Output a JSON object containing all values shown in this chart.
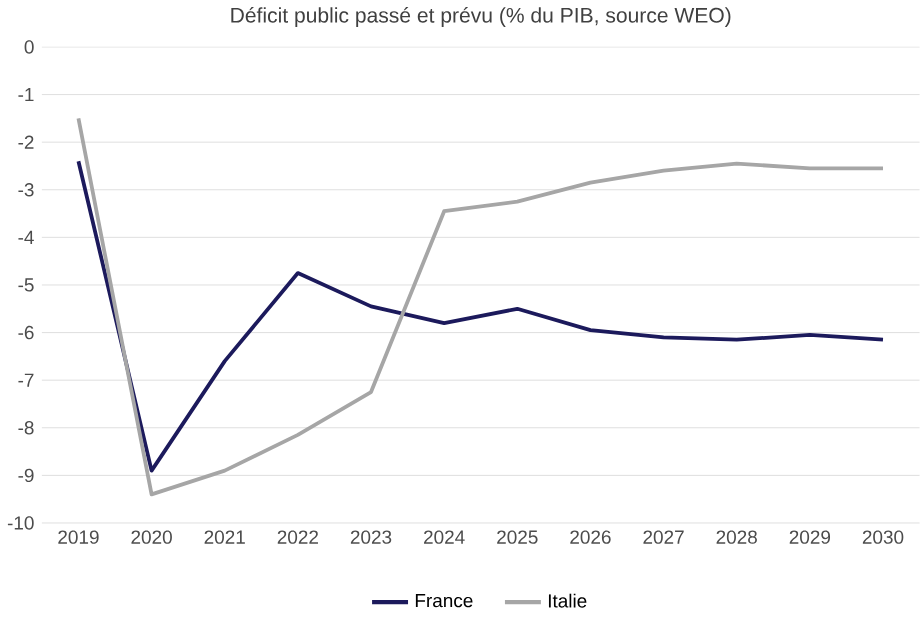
{
  "chart_data": {
    "type": "line",
    "title": "Déficit public passé et prévu (% du PIB, source WEO)",
    "categories": [
      "2019",
      "2020",
      "2021",
      "2022",
      "2023",
      "2024",
      "2025",
      "2026",
      "2027",
      "2028",
      "2029",
      "2030"
    ],
    "series": [
      {
        "name": "France",
        "color": "#1c1a5c",
        "values": [
          -2.4,
          -8.9,
          -6.6,
          -4.75,
          -5.45,
          -5.8,
          -5.5,
          -5.95,
          -6.1,
          -6.15,
          -6.05,
          -6.15
        ]
      },
      {
        "name": "Italie",
        "color": "#a6a6a6",
        "values": [
          -1.5,
          -9.4,
          -8.9,
          -8.15,
          -7.25,
          -3.45,
          -3.25,
          -2.85,
          -2.6,
          -2.45,
          -2.55,
          -2.55
        ]
      }
    ],
    "ylim": [
      -10,
      0
    ],
    "yticks": [
      0,
      -1,
      -2,
      -3,
      -4,
      -5,
      -6,
      -7,
      -8,
      -9,
      -10
    ],
    "grid": "y",
    "legend": "bottom",
    "marker": "none",
    "line_style": "solid"
  }
}
